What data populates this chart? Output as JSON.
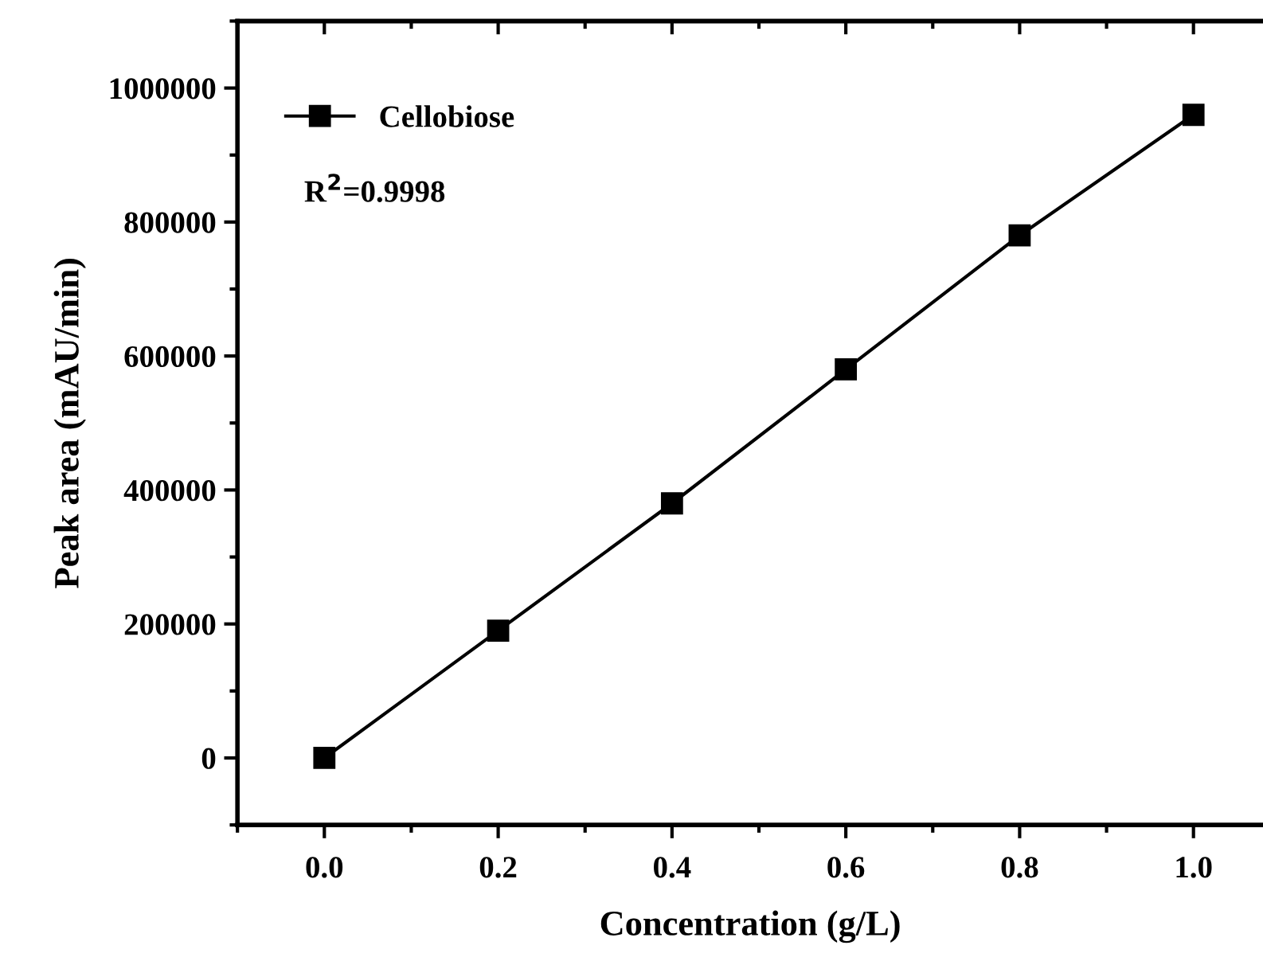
{
  "chart_data": {
    "type": "line",
    "xlabel": "Concentration (g/L)",
    "ylabel": "Peak area (mAU/min)",
    "x": [
      0.0,
      0.2,
      0.4,
      0.6,
      0.8,
      1.0
    ],
    "series": [
      {
        "name": "Cellobiose",
        "color": "#000000",
        "values": [
          0,
          190000,
          380000,
          580000,
          780000,
          960000
        ]
      }
    ],
    "xlim": [
      -0.1,
      1.08
    ],
    "xticks": [
      {
        "value": 0.0,
        "label": "0.0"
      },
      {
        "value": 0.2,
        "label": "0.2"
      },
      {
        "value": 0.4,
        "label": "0.4"
      },
      {
        "value": 0.6,
        "label": "0.6"
      },
      {
        "value": 0.8,
        "label": "0.8"
      },
      {
        "value": 1.0,
        "label": "1.0"
      }
    ],
    "ylim": [
      -100000,
      1100000
    ],
    "yticks": [
      0,
      200000,
      400000,
      600000,
      800000,
      1000000
    ],
    "annotations": [
      "R$^{2}$=0.9998"
    ],
    "legend": "top left",
    "grid": false,
    "marker": "square",
    "line_style": "solid"
  }
}
